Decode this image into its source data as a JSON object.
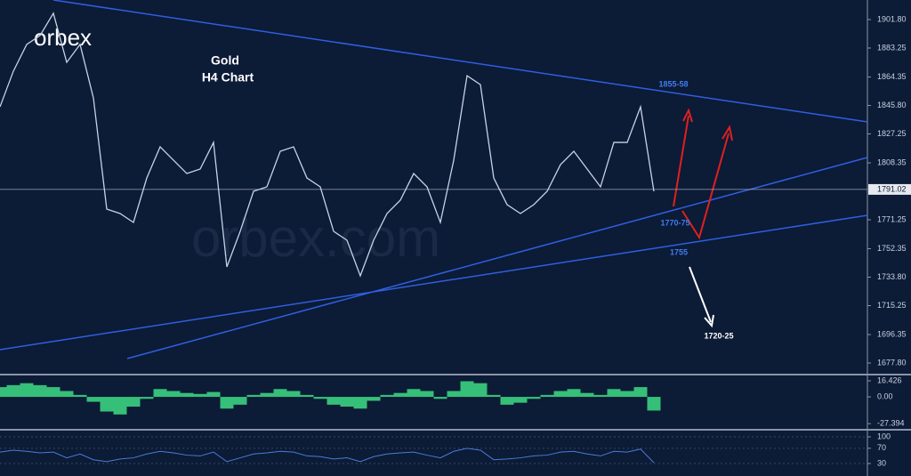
{
  "chart_data": {
    "type": "line",
    "logo": "orbex",
    "watermark": "orbex.com",
    "title": "Gold",
    "subtitle": "H4 Chart",
    "x": [
      0,
      1,
      2,
      3,
      4,
      5,
      6,
      7,
      8,
      9,
      10,
      11,
      12,
      13,
      14,
      15,
      16,
      17,
      18,
      19,
      20,
      21,
      22,
      23,
      24,
      25,
      26,
      27,
      28,
      29,
      30,
      31,
      32,
      33,
      34,
      35,
      36,
      37,
      38,
      39,
      40,
      41,
      42,
      43,
      44,
      45,
      46,
      47,
      48,
      49
    ],
    "xlim": [
      0,
      65
    ],
    "series": [
      {
        "color": "#c8d2e6",
        "values": [
          1844.9,
          1868.1,
          1885.6,
          1891.4,
          1905.9,
          1873.9,
          1885.6,
          1850.7,
          1778.2,
          1775.3,
          1769.5,
          1798.5,
          1818.8,
          1810.1,
          1801.4,
          1804.3,
          1821.7,
          1740.5,
          1763.7,
          1789.8,
          1792.7,
          1815.9,
          1818.8,
          1798.5,
          1792.7,
          1763.7,
          1757.9,
          1734.7,
          1757.9,
          1775.3,
          1784.0,
          1801.4,
          1792.7,
          1769.5,
          1810.1,
          1865.2,
          1859.4,
          1798.5,
          1781.1,
          1775.3,
          1781.1,
          1789.8,
          1807.2,
          1815.9,
          1804.3,
          1792.7,
          1821.7,
          1821.7,
          1844.9,
          1789.8
        ]
      }
    ],
    "ylim": [
      1670.85,
      1914.57
    ],
    "yticks": [
      {
        "value": 1901.8,
        "label": "1901.80"
      },
      1883.25,
      1864.35,
      {
        "value": 1845.8,
        "label": "1845.80"
      },
      1827.25,
      1808.35,
      1771.25,
      1752.35,
      {
        "value": 1733.8,
        "label": "1733.80"
      },
      1715.25,
      1696.35,
      {
        "value": 1677.8,
        "label": "1677.80"
      }
    ],
    "current_price": 1791.02,
    "annotations": [
      "1855-58",
      "1770-75",
      "1755",
      "1720-25"
    ],
    "oscillator": {
      "color": "#3ddc84",
      "ylim": [
        21.9,
        -32.7
      ],
      "yticks": [
        16.426,
        {
          "value": 0,
          "label": "0.00"
        },
        -27.394
      ],
      "values": [
        10,
        12,
        14,
        12,
        10,
        6,
        2,
        -5,
        -15,
        -18,
        -10,
        -2,
        8,
        6,
        4,
        3,
        5,
        -12,
        -8,
        2,
        4,
        8,
        6,
        2,
        -2,
        -8,
        -10,
        -12,
        -4,
        2,
        4,
        8,
        6,
        -2,
        6,
        16,
        14,
        2,
        -8,
        -6,
        -2,
        2,
        6,
        8,
        4,
        2,
        8,
        6,
        10,
        -14
      ]
    },
    "rsi": {
      "color": "#4a7bd8",
      "ylim": [
        114,
        -2.7
      ],
      "yticks": [
        100,
        70,
        30
      ],
      "values": [
        60,
        65,
        62,
        58,
        60,
        45,
        55,
        40,
        35,
        42,
        45,
        55,
        62,
        58,
        52,
        50,
        60,
        35,
        45,
        55,
        58,
        62,
        60,
        50,
        48,
        42,
        45,
        35,
        48,
        55,
        58,
        60,
        52,
        45,
        62,
        70,
        65,
        40,
        42,
        45,
        50,
        52,
        60,
        62,
        55,
        50,
        62,
        60,
        68,
        32
      ]
    }
  }
}
